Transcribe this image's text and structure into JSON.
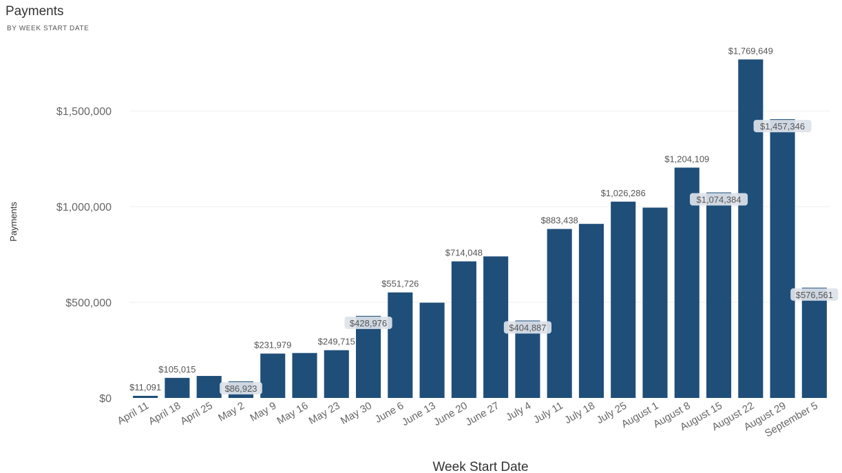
{
  "chart_data": {
    "type": "bar",
    "title": "Payments",
    "subtitle": "BY WEEK START DATE",
    "xlabel": "Week Start Date",
    "ylabel": "Payments",
    "ylim": [
      0,
      1850000
    ],
    "yticks": [
      0,
      500000,
      1000000,
      1500000
    ],
    "ytick_labels": [
      "$0",
      "$500,000",
      "$1,000,000",
      "$1,500,000"
    ],
    "grid": true,
    "legend": "none",
    "bar_color": "#1f4e79",
    "categories": [
      "April 11",
      "April 18",
      "April 25",
      "May 2",
      "May 9",
      "May 16",
      "May 23",
      "May 30",
      "June 6",
      "June 13",
      "June 20",
      "June 27",
      "July 4",
      "July 11",
      "July 18",
      "July 25",
      "August 1",
      "August 8",
      "August 15",
      "August 22",
      "August 29",
      "September 5"
    ],
    "values": [
      11091,
      105015,
      115000,
      86923,
      231979,
      235000,
      249715,
      428976,
      551726,
      498000,
      714048,
      740000,
      404887,
      883438,
      910000,
      1026286,
      995000,
      1204109,
      1074384,
      1769649,
      1457346,
      576561
    ],
    "data_labels": [
      "$11,091",
      "$105,015",
      "",
      "$86,923",
      "$231,979",
      "",
      "$249,715",
      "$428,976",
      "$551,726",
      "",
      "$714,048",
      "",
      "$404,887",
      "$883,438",
      "",
      "$1,026,286",
      "",
      "$1,204,109",
      "$1,074,384",
      "$1,769,649",
      "$1,457,346",
      "$576,561"
    ],
    "label_style": [
      "above",
      "above",
      "none",
      "inside",
      "above",
      "none",
      "above",
      "inside",
      "above",
      "none",
      "above",
      "none",
      "inside",
      "above",
      "none",
      "above",
      "none",
      "above",
      "inside",
      "above",
      "inside",
      "inside"
    ]
  }
}
